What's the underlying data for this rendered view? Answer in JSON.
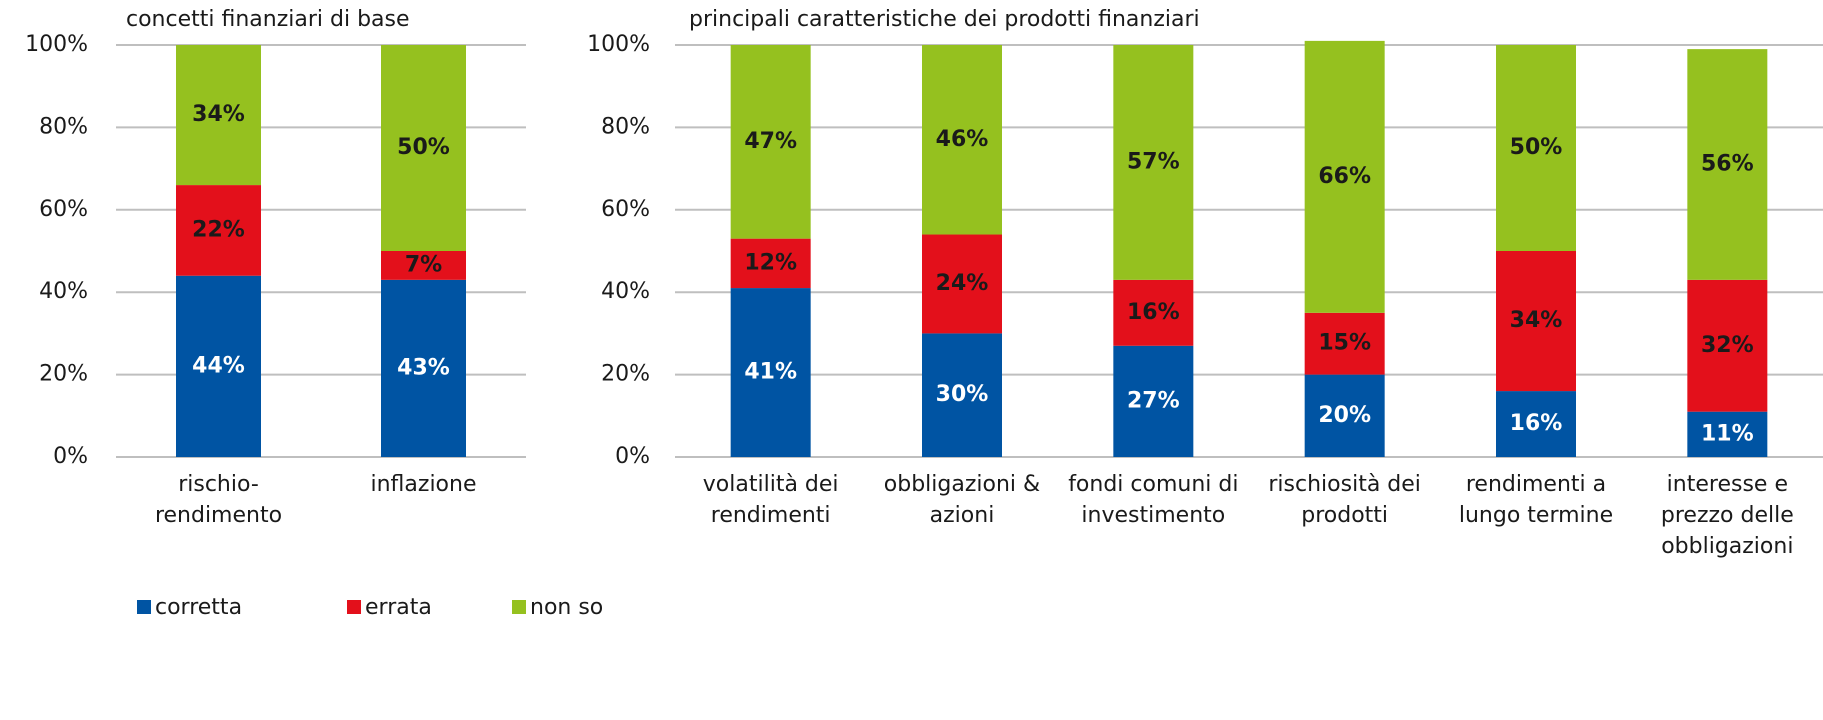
{
  "chart_data": [
    {
      "type": "stacked_bar",
      "title": "concetti finanziari di base",
      "categories": [
        "rischio-rendimento",
        "inflazione"
      ],
      "series": [
        {
          "name": "corretta",
          "color": "#0054a3",
          "label_color": "#ffffff",
          "values": [
            44,
            43
          ],
          "value_labels": [
            "44%",
            "43%"
          ]
        },
        {
          "name": "errata",
          "color": "#e3101b",
          "label_color": "#1a1a1a",
          "values": [
            22,
            7
          ],
          "value_labels": [
            "22%",
            "7%"
          ]
        },
        {
          "name": "non so",
          "color": "#95c11f",
          "label_color": "#1a1a1a",
          "values": [
            34,
            50
          ],
          "value_labels": [
            "34%",
            "50%"
          ]
        }
      ],
      "ylim": [
        0,
        100
      ],
      "yticks": [
        {
          "value": 0,
          "label": "0%"
        },
        {
          "value": 20,
          "label": "20%"
        },
        {
          "value": 40,
          "label": "40%"
        },
        {
          "value": 60,
          "label": "60%"
        },
        {
          "value": 80,
          "label": "80%"
        },
        {
          "value": 100,
          "label": "100%"
        }
      ],
      "grid": true
    },
    {
      "type": "stacked_bar",
      "title": "principali caratteristiche dei prodotti finanziari",
      "categories": [
        "volatilità dei rendimenti",
        "obbligazioni & azioni",
        "fondi comuni di investimento",
        "rischiosità dei prodotti",
        "rendimenti a lungo termine",
        "interesse e prezzo delle obbligazioni"
      ],
      "series": [
        {
          "name": "corretta",
          "color": "#0054a3",
          "label_color": "#ffffff",
          "values": [
            41,
            30,
            27,
            20,
            16,
            11
          ],
          "value_labels": [
            "41%",
            "30%",
            "27%",
            "20%",
            "16%",
            "11%"
          ]
        },
        {
          "name": "errata",
          "color": "#e3101b",
          "label_color": "#1a1a1a",
          "values": [
            12,
            24,
            16,
            15,
            34,
            32
          ],
          "value_labels": [
            "12%",
            "24%",
            "16%",
            "15%",
            "34%",
            "32%"
          ]
        },
        {
          "name": "non so",
          "color": "#95c11f",
          "label_color": "#1a1a1a",
          "values": [
            47,
            46,
            57,
            66,
            50,
            56
          ],
          "value_labels": [
            "47%",
            "46%",
            "57%",
            "66%",
            "50%",
            "56%"
          ]
        }
      ],
      "ylim": [
        0,
        100
      ],
      "yticks": [
        {
          "value": 0,
          "label": "0%"
        },
        {
          "value": 20,
          "label": "20%"
        },
        {
          "value": 40,
          "label": "40%"
        },
        {
          "value": 60,
          "label": "60%"
        },
        {
          "value": 80,
          "label": "80%"
        },
        {
          "value": 100,
          "label": "100%"
        }
      ],
      "grid": true
    }
  ]
}
